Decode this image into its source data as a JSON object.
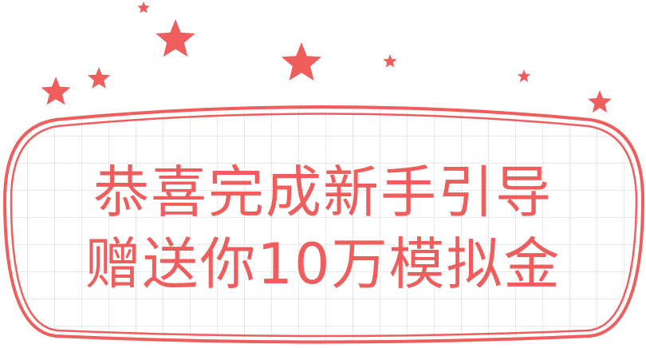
{
  "message": {
    "line1": "恭喜完成新手引导",
    "line2": "赠送你10万模拟金"
  },
  "colors": {
    "accent": "#ef5d5d",
    "grid": "#e3e3e3",
    "background": "#ffffff"
  },
  "icons": [
    "star-icon"
  ]
}
